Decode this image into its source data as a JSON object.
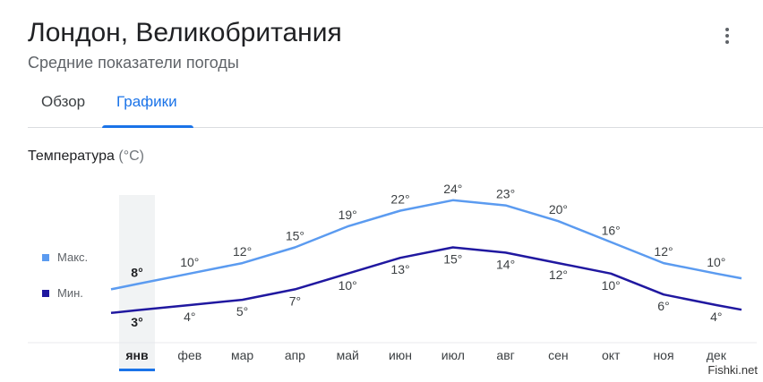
{
  "header": {
    "title": "Лондон, Великобритания",
    "subtitle": "Средние показатели погоды"
  },
  "menu": {
    "icon": "more-vert-icon"
  },
  "tabs": [
    {
      "label": "Обзор",
      "active": false
    },
    {
      "label": "Графики",
      "active": true
    }
  ],
  "section": {
    "title": "Температура",
    "unit": "(°C)"
  },
  "legend": {
    "max_label": "Макс.",
    "min_label": "Мин.",
    "max_color": "#5b9bf0",
    "min_color": "#2018a0"
  },
  "colors": {
    "accent": "#1a73e8",
    "selected_band": "#f1f3f4"
  },
  "watermark": "Fishki.net",
  "chart_data": {
    "type": "line",
    "categories": [
      "янв",
      "фев",
      "мар",
      "апр",
      "май",
      "июн",
      "июл",
      "авг",
      "сен",
      "окт",
      "ноя",
      "дек"
    ],
    "series": [
      {
        "name": "Макс.",
        "values": [
          8,
          10,
          12,
          15,
          19,
          22,
          24,
          23,
          20,
          16,
          12,
          10
        ]
      },
      {
        "name": "Мин.",
        "values": [
          3,
          4,
          5,
          7,
          10,
          13,
          15,
          14,
          12,
          10,
          6,
          4
        ]
      }
    ],
    "value_labels": {
      "max": [
        "8°",
        "10°",
        "12°",
        "15°",
        "19°",
        "22°",
        "24°",
        "23°",
        "20°",
        "16°",
        "12°",
        "10°"
      ],
      "min": [
        "3°",
        "4°",
        "5°",
        "7°",
        "10°",
        "13°",
        "15°",
        "14°",
        "12°",
        "10°",
        "6°",
        "4°"
      ]
    },
    "selected_category": "янв",
    "legend_position": "left",
    "grid": false
  }
}
